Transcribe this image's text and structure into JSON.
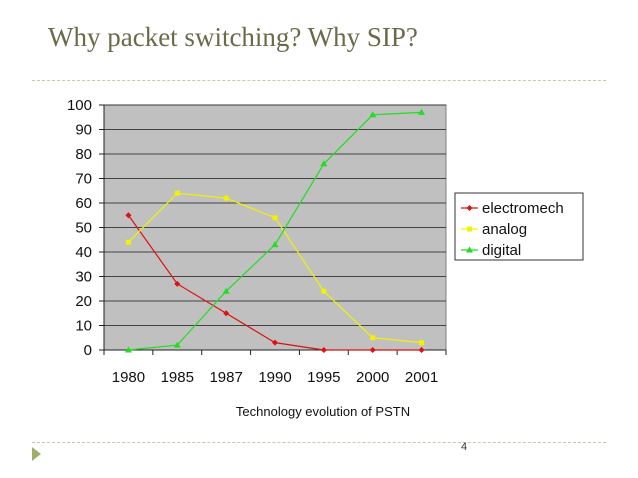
{
  "slide": {
    "title": "Why packet switching? Why SIP?",
    "caption": "Technology evolution of PSTN",
    "page_number": "4",
    "bullet_icon": "triangle-bullet-icon"
  },
  "colors": {
    "plot_background": "#c0c0c0",
    "electromech": "#dd1111",
    "analog": "#f2f200",
    "digital": "#22dd22",
    "title": "#6b6b4a"
  },
  "chart_data": {
    "type": "line",
    "title": "",
    "xlabel": "",
    "ylabel": "",
    "categories": [
      "1980",
      "1985",
      "1987",
      "1990",
      "1995",
      "2000",
      "2001"
    ],
    "ylim": [
      0,
      100
    ],
    "yticks": [
      0,
      10,
      20,
      30,
      40,
      50,
      60,
      70,
      80,
      90,
      100
    ],
    "grid": true,
    "legend_position": "right",
    "series": [
      {
        "name": "electromech",
        "marker": "diamond",
        "values": [
          55,
          27,
          15,
          3,
          0,
          0,
          0
        ]
      },
      {
        "name": "analog",
        "marker": "square",
        "values": [
          44,
          64,
          62,
          54,
          24,
          5,
          3
        ]
      },
      {
        "name": "digital",
        "marker": "triangle",
        "values": [
          0,
          2,
          24,
          43,
          76,
          96,
          97
        ]
      }
    ]
  }
}
